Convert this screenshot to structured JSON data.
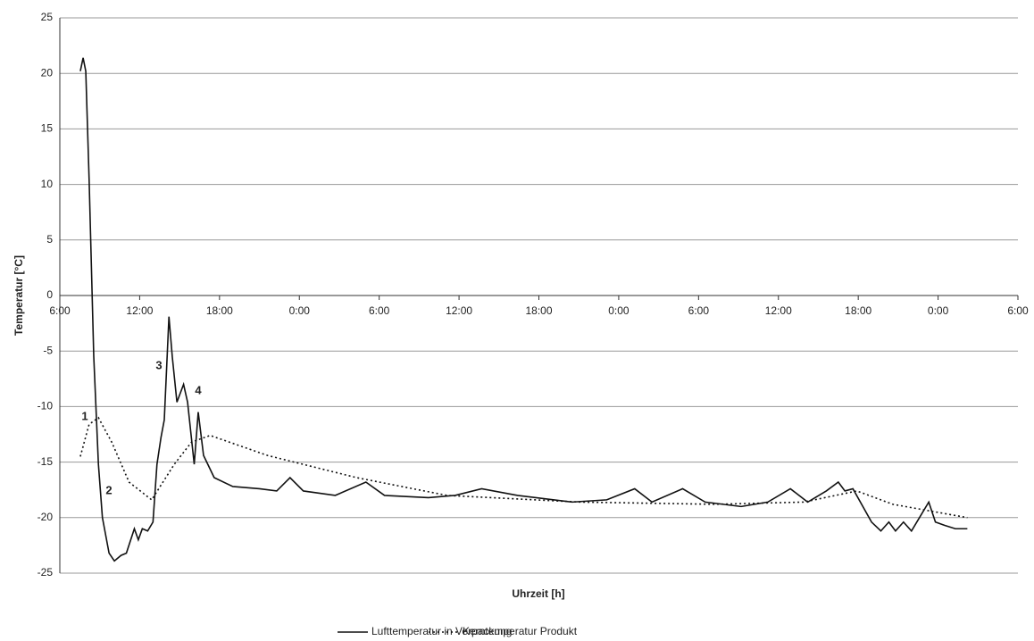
{
  "chart_data": {
    "type": "line",
    "xlabel": "Uhrzeit [h]",
    "ylabel": "Temperatur [°C]",
    "xlim": [
      0,
      72
    ],
    "xticks": [
      {
        "value": 0,
        "label": "6:00"
      },
      {
        "value": 6,
        "label": "12:00"
      },
      {
        "value": 12,
        "label": "18:00"
      },
      {
        "value": 18,
        "label": "0:00"
      },
      {
        "value": 24,
        "label": "6:00"
      },
      {
        "value": 30,
        "label": "12:00"
      },
      {
        "value": 36,
        "label": "18:00"
      },
      {
        "value": 42,
        "label": "0:00"
      },
      {
        "value": 48,
        "label": "6:00"
      },
      {
        "value": 54,
        "label": "12:00"
      },
      {
        "value": 60,
        "label": "18:00"
      },
      {
        "value": 66,
        "label": "0:00"
      },
      {
        "value": 72,
        "label": "6:00"
      }
    ],
    "ylim": [
      -25,
      25
    ],
    "yticks": [
      -25,
      -20,
      -15,
      -10,
      -5,
      0,
      5,
      10,
      15,
      20,
      25
    ],
    "grid": true,
    "legend": "bottom",
    "annotations": [
      "1",
      "2",
      "3",
      "4"
    ],
    "series": [
      {
        "name": "Lufttemperatur in Verpackung",
        "color": "#111111",
        "style": "solid",
        "x": [
          1.54,
          1.75,
          1.95,
          2.2,
          2.55,
          2.9,
          3.2,
          3.7,
          4.1,
          4.6,
          5.0,
          5.6,
          5.9,
          6.2,
          6.6,
          7.0,
          7.3,
          7.6,
          7.85,
          8.2,
          8.45,
          8.8,
          9.3,
          9.6,
          10.1,
          10.4,
          10.8,
          11.6,
          13,
          15,
          16.3,
          17.3,
          18.3,
          20.7,
          23,
          24.4,
          27.7,
          29.7,
          31.7,
          34.4,
          38.5,
          41.1,
          43.2,
          44.5,
          46.8,
          48.5,
          51.2,
          53.2,
          54.9,
          56.2,
          57.6,
          58.5,
          59,
          59.6,
          61,
          61.7,
          62.3,
          62.8,
          63.4,
          64,
          64.6,
          65.3,
          65.8,
          66.5,
          67.3,
          68.2
        ],
        "values": [
          20.2,
          21.4,
          20.2,
          10.5,
          -5.5,
          -15.2,
          -20,
          -23.2,
          -23.9,
          -23.4,
          -23.2,
          -21,
          -22,
          -21,
          -21.2,
          -20.4,
          -15.2,
          -12.8,
          -11.2,
          -1.9,
          -5.5,
          -9.6,
          -8,
          -9.6,
          -15.2,
          -10.5,
          -14.4,
          -16.4,
          -17.2,
          -17.4,
          -17.6,
          -16.4,
          -17.6,
          -18,
          -16.8,
          -18,
          -18.2,
          -18,
          -17.4,
          -18,
          -18.6,
          -18.4,
          -17.4,
          -18.6,
          -17.4,
          -18.6,
          -19,
          -18.6,
          -17.4,
          -18.6,
          -17.6,
          -16.8,
          -17.6,
          -17.4,
          -20.4,
          -21.2,
          -20.4,
          -21.2,
          -20.4,
          -21.2,
          -20,
          -18.6,
          -20.4,
          -20.7,
          -21,
          -21
        ]
      },
      {
        "name": "Kerntemperatur Produkt",
        "color": "#111111",
        "style": "dotted",
        "x": [
          1.54,
          2.2,
          2.9,
          3.9,
          5.2,
          6.9,
          8.6,
          9.9,
          11.3,
          15.6,
          22.3,
          29.1,
          39.1,
          49.2,
          55.9,
          59.9,
          62.6,
          68.2
        ],
        "values": [
          -14.5,
          -11.6,
          -11,
          -13.2,
          -16.8,
          -18.4,
          -15.2,
          -13.2,
          -12.6,
          -14.4,
          -16.4,
          -18,
          -18.6,
          -18.8,
          -18.6,
          -17.6,
          -18.8,
          -20
        ]
      }
    ]
  }
}
